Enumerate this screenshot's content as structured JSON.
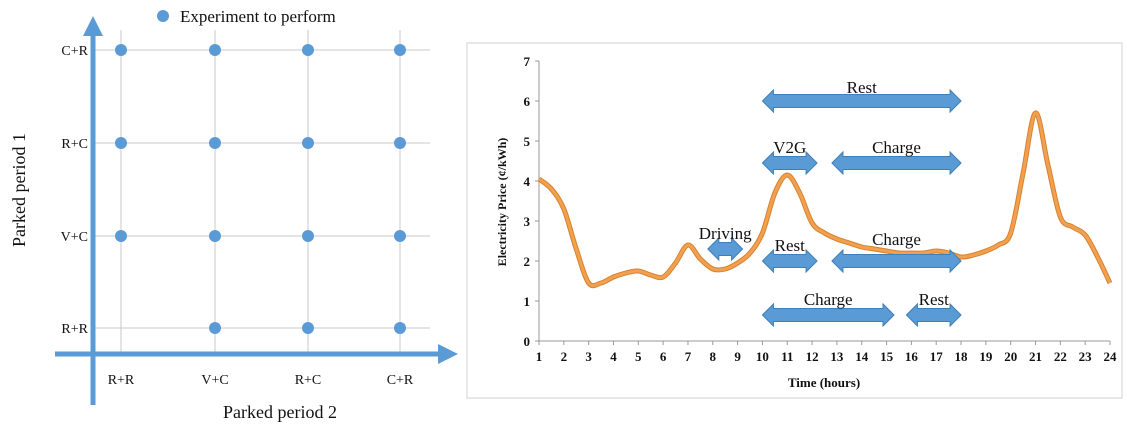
{
  "colors": {
    "accent_blue": "#5b9bd5",
    "curve_orange": "#f0a050",
    "grid_gray": "#c8c8c8",
    "frame_gray": "#d0d0d0",
    "text": "#111111"
  },
  "chart_data": [
    {
      "type": "scatter",
      "legend": "Experiment to perform",
      "legend_placement": "top",
      "ylabel": "Parked period 1",
      "xlabel": "Parked period 2",
      "x_categories": [
        "R+R",
        "V+C",
        "R+C",
        "C+R"
      ],
      "y_categories": [
        "R+R",
        "V+C",
        "R+C",
        "C+R"
      ],
      "grid": true,
      "points": [
        {
          "x": "R+R",
          "y": "C+R"
        },
        {
          "x": "V+C",
          "y": "C+R"
        },
        {
          "x": "R+C",
          "y": "C+R"
        },
        {
          "x": "C+R",
          "y": "C+R"
        },
        {
          "x": "R+R",
          "y": "R+C"
        },
        {
          "x": "V+C",
          "y": "R+C"
        },
        {
          "x": "R+C",
          "y": "R+C"
        },
        {
          "x": "C+R",
          "y": "R+C"
        },
        {
          "x": "R+R",
          "y": "V+C"
        },
        {
          "x": "V+C",
          "y": "V+C"
        },
        {
          "x": "R+C",
          "y": "V+C"
        },
        {
          "x": "C+R",
          "y": "V+C"
        },
        {
          "x": "V+C",
          "y": "R+R"
        },
        {
          "x": "R+C",
          "y": "R+R"
        },
        {
          "x": "C+R",
          "y": "R+R"
        }
      ]
    },
    {
      "type": "line",
      "xlabel": "Time (hours)",
      "ylabel": "Electricity Price (¢/kWh)",
      "xlim": [
        1,
        24
      ],
      "ylim": [
        0,
        7
      ],
      "xticks": [
        1,
        2,
        3,
        4,
        5,
        6,
        7,
        8,
        9,
        10,
        11,
        12,
        13,
        14,
        15,
        16,
        17,
        18,
        19,
        20,
        21,
        22,
        23,
        24
      ],
      "yticks": [
        0,
        1,
        2,
        3,
        4,
        5,
        6,
        7
      ],
      "grid": false,
      "series": [
        {
          "x": [
            1,
            1.5,
            2,
            2.5,
            3,
            3.5,
            4,
            4.5,
            5,
            5.5,
            6,
            6.5,
            7,
            7.5,
            8,
            8.5,
            9,
            9.5,
            10,
            10.5,
            11,
            11.5,
            12,
            12.5,
            13,
            13.5,
            14,
            14.5,
            15,
            15.5,
            16,
            16.5,
            17,
            17.5,
            18,
            18.5,
            19,
            19.5,
            20,
            20.5,
            21,
            21.5,
            22,
            22.5,
            23,
            23.5,
            24
          ],
          "values": [
            4.05,
            3.8,
            3.3,
            2.3,
            1.45,
            1.45,
            1.6,
            1.7,
            1.75,
            1.65,
            1.6,
            1.95,
            2.4,
            2.05,
            1.8,
            1.8,
            1.95,
            2.2,
            2.7,
            3.7,
            4.15,
            3.7,
            2.95,
            2.7,
            2.55,
            2.45,
            2.35,
            2.3,
            2.25,
            2.2,
            2.2,
            2.2,
            2.25,
            2.2,
            2.1,
            2.15,
            2.25,
            2.4,
            2.7,
            4.2,
            5.7,
            4.4,
            3.1,
            2.85,
            2.65,
            2.1,
            1.45
          ]
        }
      ],
      "annotations": [
        {
          "label": "Rest",
          "from": 10,
          "to": 18,
          "y": 6.0,
          "label_y": 6.35
        },
        {
          "label": "V2G",
          "from": 10,
          "to": 12.2,
          "y": 4.45,
          "label_y": 4.85
        },
        {
          "label": "Charge",
          "from": 12.8,
          "to": 18,
          "y": 4.45,
          "label_y": 4.85
        },
        {
          "label": "Driving",
          "from": 7.8,
          "to": 9.2,
          "y": 2.3,
          "label_y": 2.7
        },
        {
          "label": "Rest",
          "from": 10,
          "to": 12.2,
          "y": 2.0,
          "label_y": 2.4
        },
        {
          "label": "Charge",
          "from": 12.8,
          "to": 18,
          "y": 2.0,
          "label_y": 2.55
        },
        {
          "label": "Charge",
          "from": 10,
          "to": 15.3,
          "y": 0.65,
          "label_y": 1.05
        },
        {
          "label": "Rest",
          "from": 15.8,
          "to": 18,
          "y": 0.65,
          "label_y": 1.05
        }
      ]
    }
  ]
}
